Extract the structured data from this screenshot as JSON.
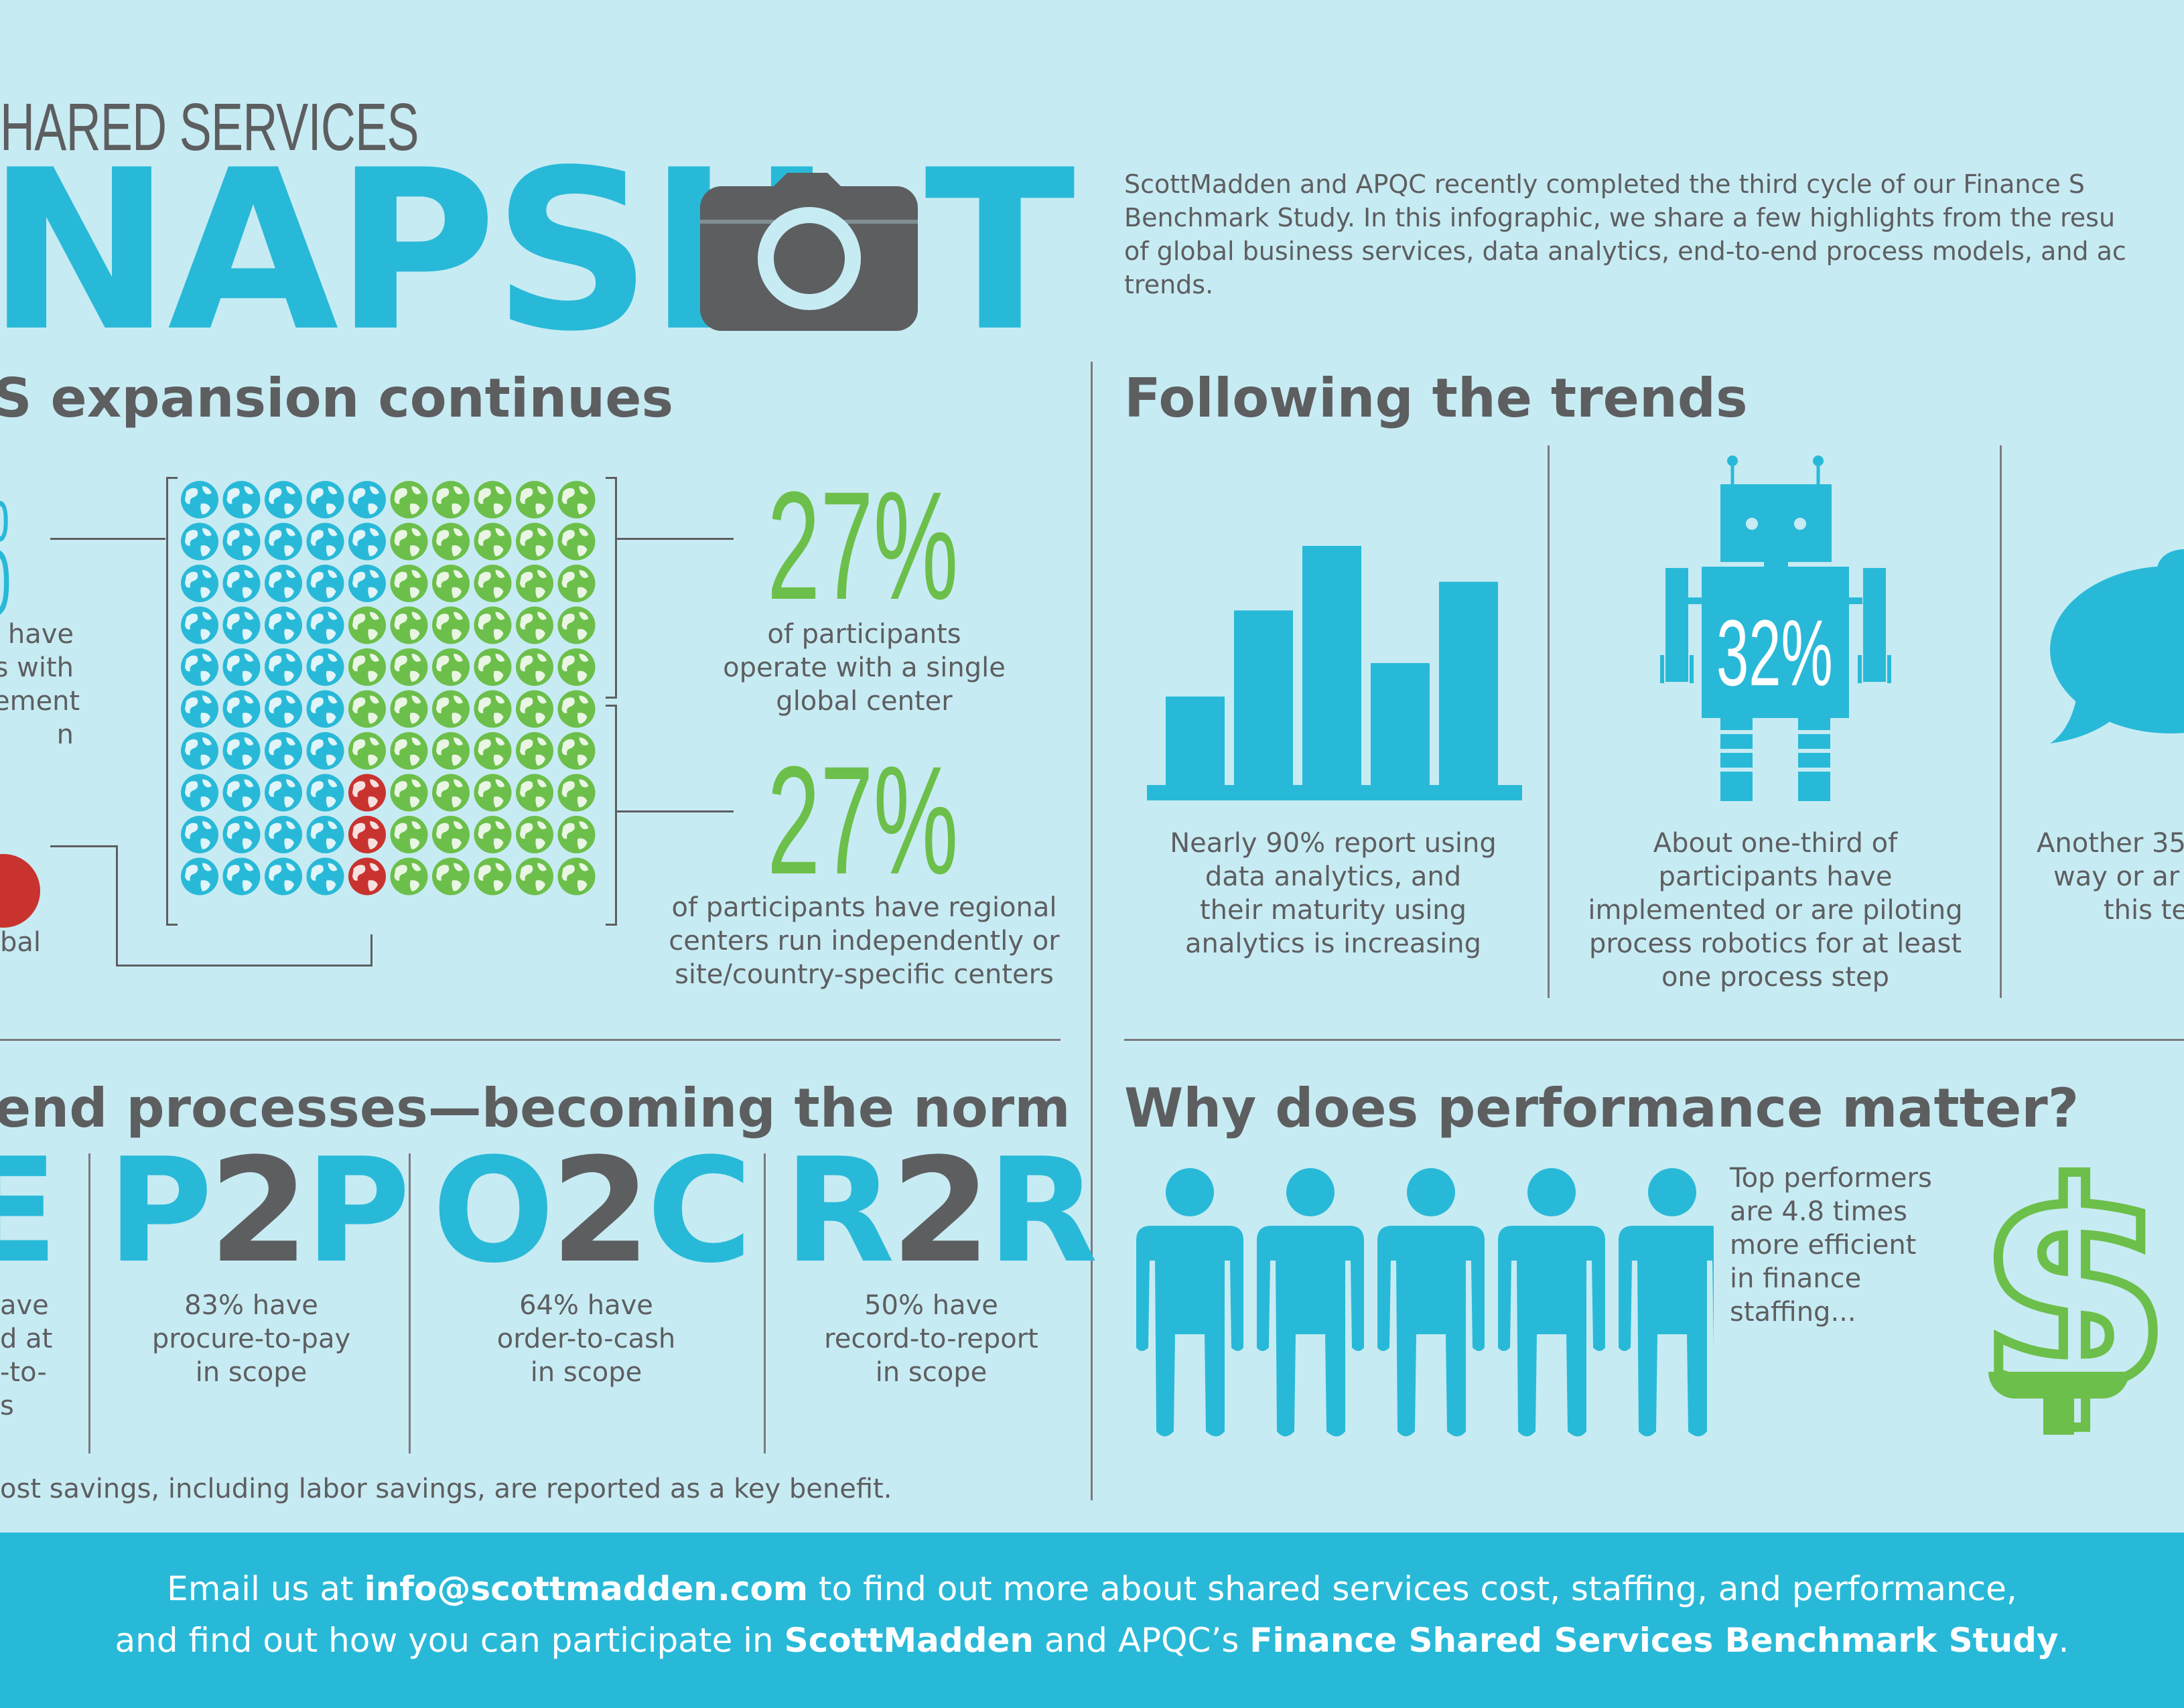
{
  "header": {
    "kicker": "HARED SERVICES",
    "title_part1": "NAPSH",
    "title_part2": "T",
    "intro_line1": "ScottMadden and APQC recently completed the third cycle of our Finance S",
    "intro_line2": "Benchmark Study. In this infographic, we share a few highlights from the resu",
    "intro_line3": "of global business services, data analytics, end-to-end process models, and ac",
    "intro_line4": "trends."
  },
  "expansion": {
    "heading": "S expansion continues",
    "left_pct_top": "%",
    "left_pct_bottom": "0",
    "left_text": [
      "have",
      "s with",
      "ement",
      "n"
    ],
    "left_bottom_text": "bal",
    "stat1_pct": "27%",
    "stat1_text": [
      "of participants",
      "operate with a single",
      "global center"
    ],
    "stat2_pct": "27%",
    "stat2_text": [
      "of participants have regional",
      "centers run independently or",
      "site/country-specific centers"
    ],
    "globe_grid": {
      "rows": 10,
      "cols": 10,
      "colors": {
        "b": "#29b9d8",
        "g": "#6cbf4a",
        "r": "#c9332f"
      },
      "pattern": [
        "bbbbbggggg",
        "bbbbbggggg",
        "bbbbbggggg",
        "bbbbgggggg",
        "bbbbgggggg",
        "bbbbgggggg",
        "bbbbgggggg",
        "bbbbrggggg",
        "bbbbrggggg",
        "bbbbrggggg"
      ]
    }
  },
  "trends": {
    "heading": "Following the trends",
    "analytics": {
      "text": [
        "Nearly 90% report using",
        "data analytics, and",
        "their maturity using",
        "analytics is increasing"
      ],
      "bar_values": [
        0.37,
        0.73,
        1.0,
        0.51,
        0.85
      ]
    },
    "robotics": {
      "pct": "32%",
      "text": [
        "About one-third of",
        "participants have",
        "implemented or are piloting",
        "process robotics for at least",
        "one process step"
      ]
    },
    "third": {
      "text": [
        "Another 35",
        "way or ar",
        "this te"
      ]
    }
  },
  "processes": {
    "heading": "end processes—becoming the norm",
    "left_letter": "E",
    "left_text": [
      "ave",
      "d at",
      "-to-",
      "s"
    ],
    "items": [
      {
        "p1": "P",
        "p2": "2",
        "p3": "P",
        "text": [
          "83% have",
          "procure-to-pay",
          "in scope"
        ]
      },
      {
        "p1": "O",
        "p2": "2",
        "p3": "C",
        "text": [
          "64% have",
          "order-to-cash",
          "in scope"
        ]
      },
      {
        "p1": "R",
        "p2": "2",
        "p3": "R",
        "text": [
          "50% have",
          "record-to-report",
          "in scope"
        ]
      }
    ],
    "footnote": "ost savings, including labor savings, are reported as a key benefit."
  },
  "performance": {
    "heading": "Why does performance matter?",
    "text": [
      "Top performers",
      "are 4.8 times",
      "more efficient",
      "in finance",
      "staffing..."
    ],
    "dollar": "$"
  },
  "footer": {
    "line1_a": "Email us at ",
    "line1_email": "info@scottmadden.com",
    "line1_b": " to find out more about shared services cost, staffing, and performance,",
    "line2_a": "and find out how you can participate in ",
    "line2_brand": "ScottMadden",
    "line2_b": " and APQC’s ",
    "line2_study": "Finance Shared Services Benchmark Study",
    "line2_c": "."
  },
  "colors": {
    "teal": "#29b9d8",
    "green": "#6cbf4a",
    "red": "#c9332f",
    "gray": "#5d5e60",
    "background": "#c7ebf3"
  }
}
